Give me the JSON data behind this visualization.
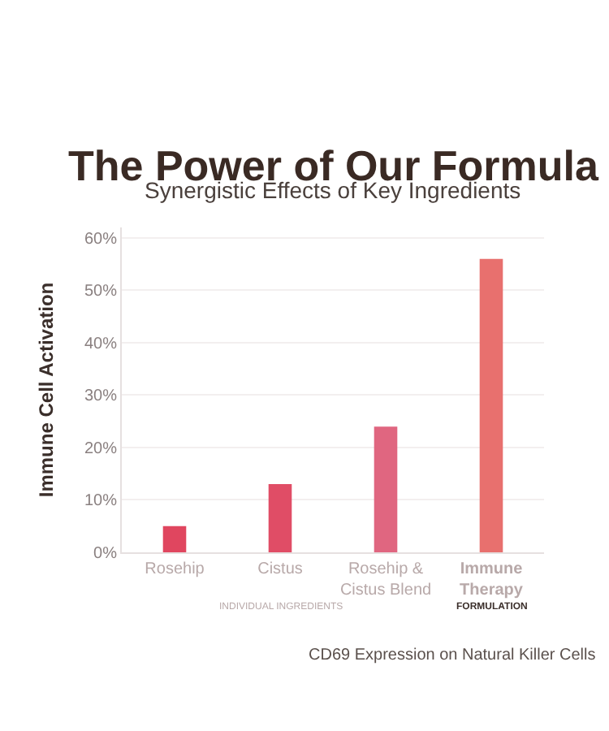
{
  "chart_data": {
    "type": "bar",
    "title": "The Power of Our Formula",
    "subtitle": "Synergistic Effects of Key Ingredients",
    "ylabel": "Immune Cell Activation",
    "categories": [
      "Rosehip",
      "Cistus",
      "Rosehip &\nCistus Blend",
      "Immune\nTherapy"
    ],
    "values": [
      5,
      13,
      24,
      56
    ],
    "colors": [
      "#e0465f",
      "#e04d66",
      "#e06680",
      "#e8706e"
    ],
    "ylim": [
      0,
      62
    ],
    "yticks": [
      {
        "value": 0,
        "label": "0%"
      },
      {
        "value": 10,
        "label": "10%"
      },
      {
        "value": 20,
        "label": "20%"
      },
      {
        "value": 30,
        "label": "30%"
      },
      {
        "value": 40,
        "label": "40%"
      },
      {
        "value": 50,
        "label": "50%"
      },
      {
        "value": 60,
        "label": "60%"
      }
    ],
    "grid": "y",
    "annotations": [
      "INDIVIDUAL INGREDIENTS",
      "FORMULATION",
      "CD69 Expression on Natural Killer Cells"
    ]
  }
}
